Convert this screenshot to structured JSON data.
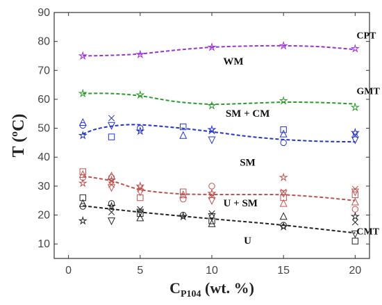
{
  "chart_data": {
    "type": "scatter",
    "title": "",
    "xlabel": {
      "main": "C",
      "sub": "P104",
      "rest": " (wt. %)"
    },
    "ylabel": "T (ºC)",
    "xlim": [
      -1,
      21
    ],
    "ylim": [
      5,
      90
    ],
    "xticks": [
      0,
      5,
      10,
      15,
      20
    ],
    "yticks": [
      10,
      20,
      30,
      40,
      50,
      60,
      70,
      80,
      90
    ],
    "series": [
      {
        "name": "CPT",
        "color": "#9b30d9",
        "points": [
          [
            1,
            75
          ],
          [
            5,
            75.5
          ],
          [
            10,
            78
          ],
          [
            15,
            78.5
          ],
          [
            20,
            77.5
          ]
        ],
        "fit": [
          [
            1,
            75
          ],
          [
            3,
            75.2
          ],
          [
            5,
            75.7
          ],
          [
            7.5,
            77
          ],
          [
            10,
            78
          ],
          [
            12.5,
            78.4
          ],
          [
            15,
            78.5
          ],
          [
            17.5,
            78.2
          ],
          [
            20,
            77.2
          ]
        ]
      },
      {
        "name": "GMT",
        "color": "#2a9a2a",
        "points": [
          [
            1,
            62
          ],
          [
            5,
            61.5
          ],
          [
            10,
            57.8
          ],
          [
            15,
            59.5
          ],
          [
            20,
            57.2
          ]
        ],
        "fit": [
          [
            1,
            62
          ],
          [
            3,
            62
          ],
          [
            5,
            61.2
          ],
          [
            7.5,
            59.2
          ],
          [
            10,
            58.3
          ],
          [
            12.5,
            58.6
          ],
          [
            15,
            59
          ],
          [
            17.5,
            58.9
          ],
          [
            20,
            58.4
          ]
        ]
      },
      {
        "name": "",
        "color": "#2233cc",
        "points": [
          [
            1,
            47.5
          ],
          [
            1,
            51
          ],
          [
            1,
            52
          ],
          [
            3,
            47
          ],
          [
            3,
            51
          ],
          [
            3,
            53.5
          ],
          [
            5,
            49
          ],
          [
            5,
            50
          ],
          [
            8,
            47.5
          ],
          [
            8,
            50.5
          ],
          [
            10,
            46
          ],
          [
            10,
            49
          ],
          [
            10,
            49.5
          ],
          [
            15,
            45
          ],
          [
            15,
            48
          ],
          [
            15,
            49.5
          ],
          [
            20,
            46
          ],
          [
            20,
            47.5
          ],
          [
            20,
            48.5
          ]
        ],
        "fit": [
          [
            1,
            48
          ],
          [
            2,
            49.8
          ],
          [
            3.5,
            51
          ],
          [
            5,
            51.2
          ],
          [
            7.5,
            50.2
          ],
          [
            10,
            48.8
          ],
          [
            12.5,
            47.2
          ],
          [
            15,
            46.1
          ],
          [
            17.5,
            45.5
          ],
          [
            20,
            45.3
          ]
        ]
      },
      {
        "name": "",
        "color": "#c0504d",
        "points": [
          [
            1,
            31
          ],
          [
            1,
            33
          ],
          [
            1,
            34
          ],
          [
            1,
            35
          ],
          [
            3,
            29.5
          ],
          [
            3,
            30.5
          ],
          [
            3,
            32
          ],
          [
            3,
            33
          ],
          [
            3,
            33.5
          ],
          [
            5,
            26
          ],
          [
            5,
            28
          ],
          [
            5,
            29
          ],
          [
            5,
            30
          ],
          [
            8,
            25.5
          ],
          [
            8,
            27
          ],
          [
            8,
            28
          ],
          [
            10,
            25
          ],
          [
            10,
            26.5
          ],
          [
            10,
            27.5
          ],
          [
            10,
            30
          ],
          [
            15,
            24
          ],
          [
            15,
            26
          ],
          [
            15,
            27.5
          ],
          [
            15,
            28
          ],
          [
            15,
            33
          ],
          [
            20,
            22
          ],
          [
            20,
            24.5
          ],
          [
            20,
            27
          ],
          [
            20,
            28
          ],
          [
            20,
            29
          ]
        ],
        "fit": [
          [
            1,
            33.5
          ],
          [
            3,
            31.8
          ],
          [
            5,
            28.8
          ],
          [
            7.5,
            27.4
          ],
          [
            10,
            27.1
          ],
          [
            12.5,
            27.1
          ],
          [
            15,
            27
          ],
          [
            17.5,
            26.2
          ],
          [
            20,
            25
          ]
        ]
      },
      {
        "name": "CMT",
        "color": "#222222",
        "points": [
          [
            1,
            18
          ],
          [
            1,
            23
          ],
          [
            1,
            24
          ],
          [
            1,
            26
          ],
          [
            3,
            18
          ],
          [
            3,
            21
          ],
          [
            3,
            23
          ],
          [
            3,
            24
          ],
          [
            5,
            19
          ],
          [
            5,
            20.5
          ],
          [
            5,
            21
          ],
          [
            5,
            22
          ],
          [
            8,
            19.5
          ],
          [
            8,
            20
          ],
          [
            10,
            17
          ],
          [
            10,
            18
          ],
          [
            10,
            19.5
          ],
          [
            10,
            20.5
          ],
          [
            15,
            16
          ],
          [
            15,
            16.5
          ],
          [
            15,
            19.5
          ],
          [
            20,
            11
          ],
          [
            20,
            13.5
          ],
          [
            20,
            17.5
          ],
          [
            20,
            19.5
          ]
        ],
        "fit": [
          [
            1,
            23.2
          ],
          [
            5,
            21
          ],
          [
            10,
            18.7
          ],
          [
            15,
            16.5
          ],
          [
            20,
            13.8
          ]
        ]
      }
    ],
    "regions": [
      {
        "text": "WM",
        "x": 11.5,
        "y": 72
      },
      {
        "text": "SM + CM",
        "x": 12.5,
        "y": 54
      },
      {
        "text": "SM",
        "x": 12.5,
        "y": 37
      },
      {
        "text": "U + SM",
        "x": 12,
        "y": 23
      },
      {
        "text": "U",
        "x": 12.5,
        "y": 10
      }
    ]
  }
}
